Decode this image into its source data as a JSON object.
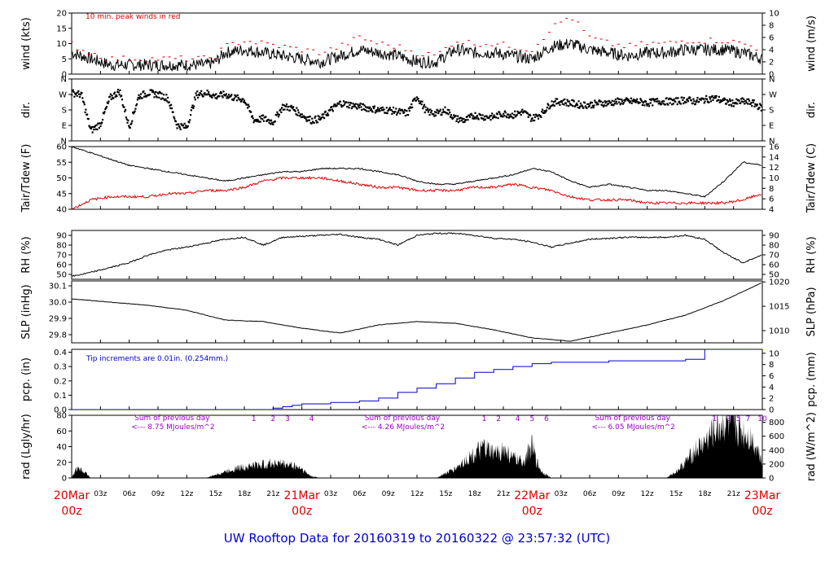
{
  "title": "UW Rooftop Data for 20160319  to  20160322 @ 23:57:32  (UTC)",
  "colors": {
    "frame": "#000000",
    "red": "#dd0000",
    "blue": "#0000cc",
    "purple": "#9900cc",
    "title": "#0000cc"
  },
  "time_axis": {
    "range_hours": [
      0,
      72
    ],
    "tick_labels": [
      "03z",
      "06z",
      "09z",
      "12z",
      "15z",
      "18z",
      "21z",
      "03z",
      "06z",
      "09z",
      "12z",
      "15z",
      "18z",
      "21z",
      "03z",
      "06z",
      "09z",
      "12z",
      "15z",
      "18z",
      "21z"
    ],
    "tick_hours": [
      3,
      6,
      9,
      12,
      15,
      18,
      21,
      27,
      30,
      33,
      36,
      39,
      42,
      45,
      51,
      54,
      57,
      60,
      63,
      66,
      69
    ],
    "date_labels": [
      {
        "date": "20Mar",
        "time": "00z",
        "hour": 0
      },
      {
        "date": "21Mar",
        "time": "00z",
        "hour": 24
      },
      {
        "date": "22Mar",
        "time": "00z",
        "hour": 48
      },
      {
        "date": "23Mar",
        "time": "00z",
        "hour": 72
      }
    ]
  },
  "chart_data": [
    {
      "type": "line",
      "id": "wind",
      "ylabel": "wind (kts)",
      "ylabel_right": "wind (m/s)",
      "ylim": [
        0,
        20
      ],
      "yticks": [
        0,
        5,
        10,
        15,
        20
      ],
      "ylim_right": [
        0,
        10
      ],
      "yticks_right": [
        0,
        2,
        4,
        6,
        8,
        10
      ],
      "annotation": "10 min. peak winds in red",
      "series": [
        {
          "x": [
            0,
            1,
            2,
            4,
            6,
            8,
            10,
            12,
            14,
            15,
            16,
            18,
            20,
            22,
            24,
            26,
            28,
            30,
            32,
            34,
            36,
            38,
            40,
            42,
            44,
            46,
            48,
            50,
            52,
            54,
            56,
            58,
            60,
            62,
            64,
            66,
            68,
            70,
            72
          ],
          "values": [
            7,
            6,
            5,
            3,
            3,
            3,
            3,
            3,
            3,
            4,
            7,
            8,
            7,
            6,
            5,
            4,
            6,
            8,
            7,
            6,
            4,
            4,
            8,
            7,
            7,
            6,
            5,
            9,
            10,
            8,
            7,
            6,
            7,
            7,
            8,
            8,
            8,
            7,
            5
          ]
        },
        {
          "name": "10 min. peak winds in red",
          "x": [
            0,
            1,
            2,
            4,
            6,
            8,
            10,
            12,
            14,
            15,
            16,
            18,
            20,
            22,
            24,
            26,
            28,
            30,
            32,
            34,
            36,
            38,
            40,
            42,
            44,
            46,
            48,
            50,
            52,
            54,
            56,
            58,
            60,
            62,
            64,
            66,
            68,
            70,
            72
          ],
          "values": [
            10,
            8,
            7,
            5,
            5,
            5,
            5,
            5,
            5,
            6,
            9,
            11,
            10,
            9,
            8,
            7,
            9,
            12,
            10,
            9,
            7,
            6,
            11,
            10,
            10,
            9,
            8,
            15,
            19,
            12,
            10,
            9,
            10,
            10,
            11,
            11,
            11,
            10,
            8
          ]
        }
      ]
    },
    {
      "type": "scatter",
      "id": "dir",
      "ylabel": "dir.",
      "ylabel_right": "dir.",
      "yticks_labels": [
        "N",
        "E",
        "S",
        "W",
        "N"
      ],
      "series": [
        {
          "x": [
            0,
            1,
            2,
            3,
            4,
            5,
            6,
            7,
            8,
            9,
            10,
            11,
            12,
            13,
            14,
            15,
            16,
            17,
            18,
            19,
            20,
            21,
            22,
            23,
            24,
            25,
            26,
            27,
            28,
            29,
            30,
            31,
            32,
            33,
            34,
            35,
            36,
            37,
            38,
            39,
            40,
            41,
            42,
            43,
            44,
            45,
            46,
            47,
            48,
            49,
            50,
            51,
            52,
            53,
            54,
            55,
            56,
            57,
            58,
            59,
            60,
            61,
            62,
            63,
            64,
            65,
            66,
            67,
            68,
            69,
            70,
            71,
            72
          ],
          "values": [
            280,
            270,
            60,
            100,
            250,
            290,
            80,
            260,
            280,
            270,
            250,
            90,
            80,
            270,
            280,
            260,
            270,
            250,
            240,
            120,
            130,
            110,
            200,
            190,
            150,
            120,
            130,
            180,
            220,
            210,
            200,
            190,
            180,
            180,
            170,
            160,
            260,
            170,
            160,
            180,
            130,
            120,
            150,
            140,
            140,
            160,
            150,
            170,
            130,
            160,
            220,
            230,
            220,
            210,
            210,
            220,
            220,
            230,
            230,
            230,
            220,
            230,
            230,
            230,
            240,
            230,
            240,
            250,
            230,
            220,
            230,
            220,
            190
          ]
        }
      ]
    },
    {
      "type": "line",
      "id": "temp",
      "ylabel": "Tair/Tdew (F)",
      "ylabel_right": "Tair/Tdew (C)",
      "ylim": [
        40,
        60
      ],
      "yticks": [
        40,
        45,
        50,
        55,
        60
      ],
      "ylim_right": [
        4,
        16
      ],
      "yticks_right": [
        4,
        6,
        8,
        10,
        12,
        14,
        16
      ],
      "series": [
        {
          "name": "Tair",
          "x": [
            0,
            2,
            4,
            6,
            8,
            10,
            12,
            14,
            16,
            18,
            20,
            22,
            24,
            26,
            28,
            30,
            32,
            34,
            36,
            38,
            40,
            42,
            44,
            46,
            48,
            50,
            52,
            54,
            56,
            58,
            60,
            62,
            64,
            66,
            68,
            70,
            72
          ],
          "values": [
            60,
            58,
            56,
            54,
            53,
            52,
            51,
            50,
            49,
            50,
            51,
            52,
            52,
            53,
            53,
            53,
            52,
            51,
            49,
            48,
            48,
            49,
            50,
            51,
            53,
            52,
            49,
            47,
            48,
            47,
            46,
            46,
            45,
            44,
            49,
            55,
            54
          ]
        },
        {
          "name": "Tdew",
          "x": [
            0,
            2,
            4,
            6,
            8,
            10,
            12,
            14,
            16,
            18,
            20,
            22,
            24,
            26,
            28,
            30,
            32,
            34,
            36,
            38,
            40,
            42,
            44,
            46,
            48,
            50,
            52,
            54,
            56,
            58,
            60,
            62,
            64,
            66,
            68,
            70,
            72
          ],
          "values": [
            40,
            43,
            44,
            44,
            44,
            45,
            45,
            46,
            46,
            47,
            49,
            50,
            50,
            50,
            49,
            48,
            47,
            47,
            46,
            46,
            46,
            47,
            47,
            48,
            47,
            46,
            44,
            43,
            43,
            43,
            42,
            42,
            42,
            42,
            42,
            43,
            45
          ]
        }
      ]
    },
    {
      "type": "line",
      "id": "rh",
      "ylabel": "RH (%)",
      "ylabel_right": "RH (%)",
      "ylim": [
        45,
        95
      ],
      "yticks": [
        50,
        60,
        70,
        80,
        90
      ],
      "series": [
        {
          "x": [
            0,
            2,
            4,
            6,
            8,
            10,
            12,
            14,
            16,
            18,
            20,
            22,
            24,
            26,
            28,
            30,
            32,
            34,
            36,
            38,
            40,
            42,
            44,
            46,
            48,
            50,
            52,
            54,
            56,
            58,
            60,
            62,
            64,
            66,
            68,
            70,
            72
          ],
          "values": [
            48,
            52,
            57,
            62,
            70,
            75,
            78,
            82,
            86,
            88,
            80,
            88,
            89,
            90,
            91,
            88,
            86,
            80,
            90,
            92,
            92,
            90,
            87,
            86,
            83,
            78,
            82,
            86,
            87,
            88,
            88,
            88,
            90,
            86,
            72,
            62,
            70
          ]
        }
      ]
    },
    {
      "type": "line",
      "id": "slp",
      "ylabel": "SLP (inHg)",
      "ylabel_right": "SLP (hPa)",
      "ylim": [
        29.75,
        30.13
      ],
      "yticks": [
        29.8,
        29.9,
        30.0,
        30.1
      ],
      "ylim_right": [
        1007.5,
        1020.2
      ],
      "yticks_right": [
        1010,
        1015,
        1020
      ],
      "series": [
        {
          "x": [
            0,
            4,
            8,
            12,
            16,
            20,
            24,
            28,
            32,
            36,
            40,
            44,
            48,
            52,
            56,
            60,
            64,
            68,
            72
          ],
          "values": [
            30.02,
            30.0,
            29.98,
            29.95,
            29.89,
            29.88,
            29.84,
            29.81,
            29.86,
            29.88,
            29.87,
            29.83,
            29.78,
            29.76,
            29.81,
            29.86,
            29.92,
            30.01,
            30.12
          ]
        }
      ]
    },
    {
      "type": "line",
      "id": "pcp",
      "ylabel": "pcp. (in)",
      "ylabel_right": "pcp. (mm)",
      "ylim": [
        0,
        0.42
      ],
      "yticks": [
        0.0,
        0.1,
        0.2,
        0.3,
        0.4
      ],
      "ylim_right": [
        0,
        10.7
      ],
      "yticks_right": [
        0,
        2,
        4,
        6,
        8,
        10
      ],
      "annotation": "Tip increments are 0.01in. (0.254mm.)",
      "series": [
        {
          "x": [
            0,
            20,
            21,
            22,
            23,
            24,
            27,
            30,
            32,
            34,
            36,
            38,
            40,
            42,
            44,
            46,
            48,
            50,
            52,
            56,
            60,
            62,
            64,
            66,
            68,
            70,
            72
          ],
          "values": [
            0,
            0,
            0.01,
            0.02,
            0.03,
            0.04,
            0.05,
            0.06,
            0.08,
            0.12,
            0.15,
            0.18,
            0.22,
            0.26,
            0.28,
            0.3,
            0.32,
            0.33,
            0.33,
            0.34,
            0.34,
            0.34,
            0.35,
            0.42,
            0.42,
            0.42,
            0.42
          ]
        }
      ]
    },
    {
      "type": "area",
      "id": "rad",
      "ylabel": "rad (Lgly/hr)",
      "ylabel_right": "rad (W/m^2)",
      "ylim": [
        0,
        80
      ],
      "yticks": [
        0,
        20,
        40,
        60,
        80
      ],
      "ylim_right": [
        0,
        900
      ],
      "yticks_right": [
        0,
        200,
        400,
        600,
        800
      ],
      "annotations": [
        {
          "text": "Sum of previous day",
          "hour": 4
        },
        {
          "text": "<--- 8.75 MJoules/m^2",
          "hour": 4
        },
        {
          "text": "Sum of previous day",
          "hour": 28
        },
        {
          "text": "<--- 4.26 MJoules/m^2",
          "hour": 28
        },
        {
          "text": "Sum of previous day",
          "hour": 52
        },
        {
          "text": "<--- 6.05 MJoules/m^2",
          "hour": 52
        }
      ],
      "hour_markers": [
        {
          "text": "1",
          "hour": 19
        },
        {
          "text": "2",
          "hour": 21
        },
        {
          "text": "3",
          "hour": 22.5
        },
        {
          "text": "4",
          "hour": 25
        },
        {
          "text": "1",
          "hour": 43
        },
        {
          "text": "2",
          "hour": 44.5
        },
        {
          "text": "4",
          "hour": 46.5
        },
        {
          "text": "5",
          "hour": 48
        },
        {
          "text": "6",
          "hour": 49.5
        },
        {
          "text": "1",
          "hour": 67
        },
        {
          "text": "3",
          "hour": 68.5
        },
        {
          "text": "5",
          "hour": 69.5
        },
        {
          "text": "7",
          "hour": 70.5
        },
        {
          "text": "10",
          "hour": 72
        }
      ],
      "series": [
        {
          "x": [
            0,
            0.5,
            1,
            1.5,
            2,
            14,
            15,
            16,
            17,
            18,
            19,
            20,
            21,
            22,
            23,
            24,
            24.5,
            25,
            26,
            38,
            39,
            40,
            41,
            42,
            43,
            44,
            45,
            46,
            47,
            48,
            48.5,
            49,
            50,
            62,
            63,
            64,
            65,
            66,
            67,
            68,
            69,
            70,
            71,
            72
          ],
          "values": [
            0,
            12,
            10,
            6,
            0,
            0,
            4,
            8,
            12,
            14,
            16,
            17,
            19,
            18,
            16,
            12,
            6,
            2,
            0,
            0,
            6,
            12,
            22,
            30,
            38,
            30,
            36,
            25,
            20,
            40,
            20,
            8,
            0,
            0,
            8,
            20,
            35,
            45,
            60,
            70,
            65,
            58,
            48,
            25
          ]
        }
      ]
    }
  ]
}
